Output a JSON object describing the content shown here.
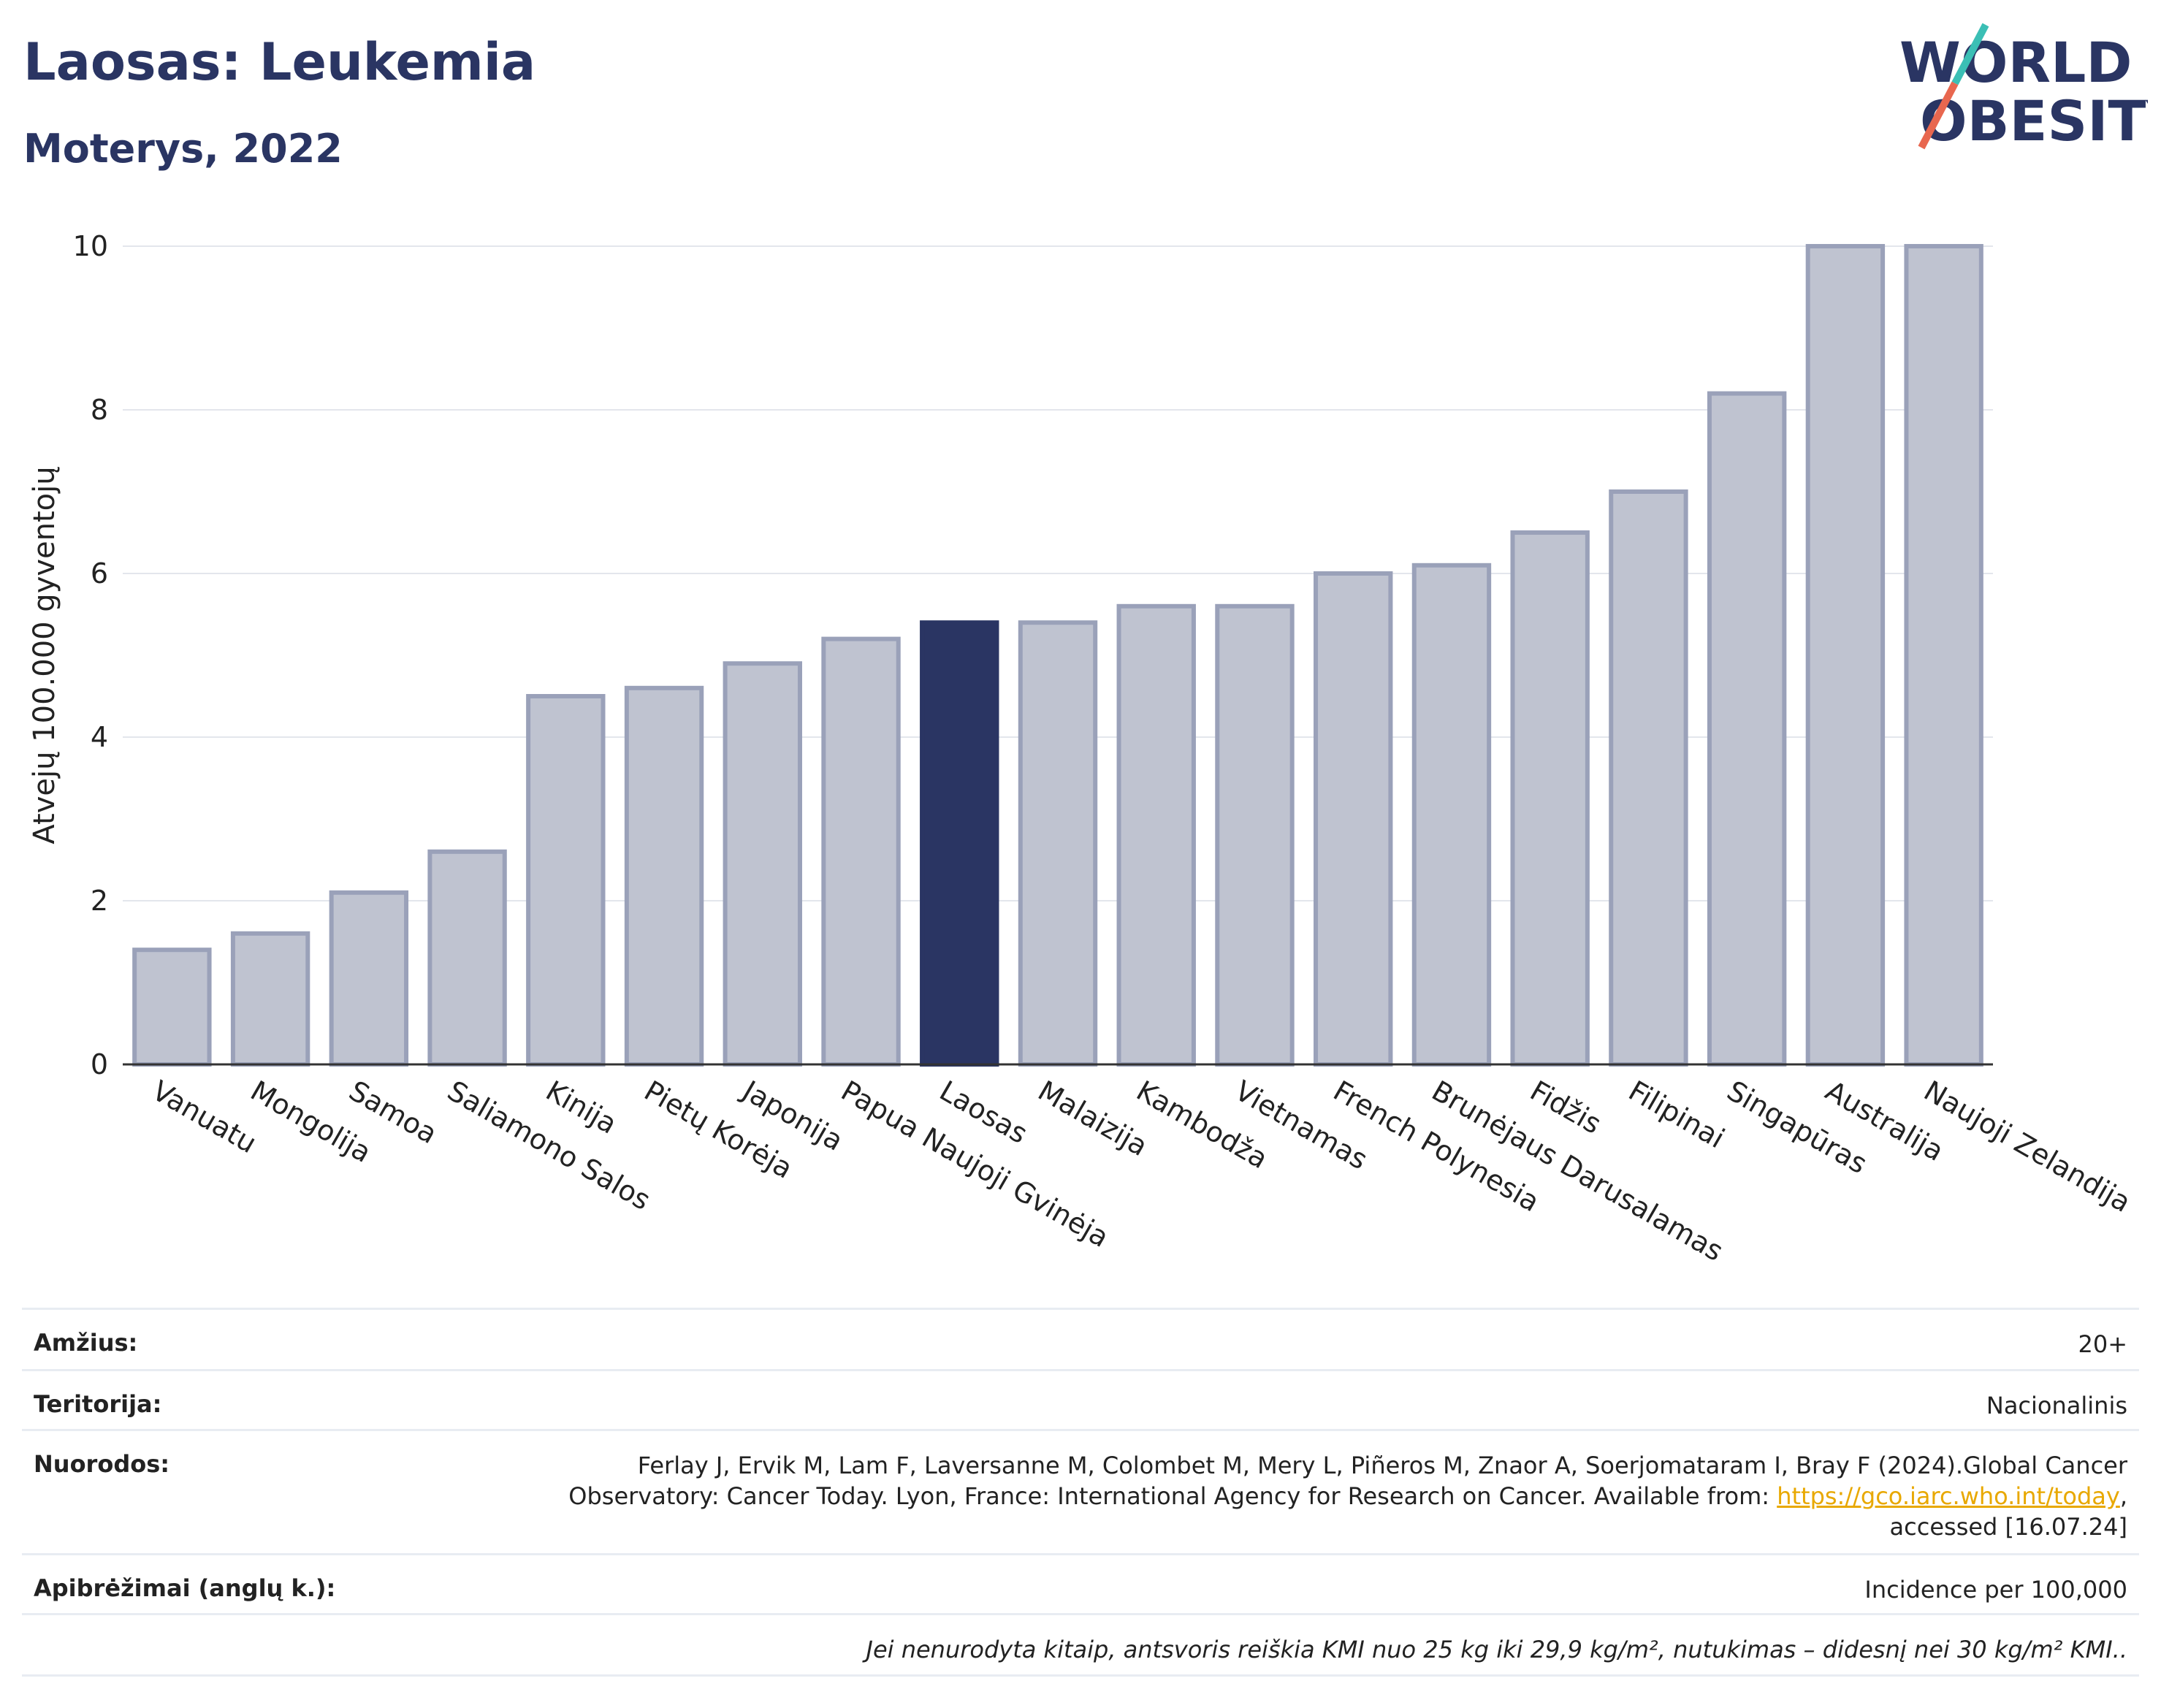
{
  "header": {
    "title": "Laosas: Leukemia",
    "subtitle": "Moterys, 2022"
  },
  "logo": {
    "line1": "WORLD",
    "line2": "OBESITY",
    "accent_colors": [
      "#3bbfb5",
      "#e8674f"
    ]
  },
  "colors": {
    "bar": "#bfc3d0",
    "bar_edge": "#9aa1b9",
    "highlight": "#2a3563",
    "grid": "#e3e6ec",
    "axis": "#333333"
  },
  "chart_data": {
    "type": "bar",
    "ylabel": "Atvejų 100.000 gyventojų",
    "ylim": [
      0,
      10
    ],
    "yticks": [
      0,
      2,
      4,
      6,
      8,
      10
    ],
    "grid": true,
    "highlight_category": "Laosas",
    "categories": [
      "Vanuatu",
      "Mongolija",
      "Samoa",
      "Saliamono Salos",
      "Kinija",
      "Pietų Korėja",
      "Japonija",
      "Papua Naujoji Gvinėja",
      "Laosas",
      "Malaizija",
      "Kambodža",
      "Vietnamas",
      "French Polynesia",
      "Brunėjaus Darusalamas",
      "Fidžis",
      "Filipinai",
      "Singapūras",
      "Australija",
      "Naujoji Zelandija"
    ],
    "values": [
      1.4,
      1.6,
      2.1,
      2.6,
      4.5,
      4.6,
      4.9,
      5.2,
      5.4,
      5.4,
      5.6,
      5.6,
      6.0,
      6.1,
      6.5,
      7.0,
      8.2,
      10.0,
      10.0
    ]
  },
  "info": {
    "age_label": "Amžius:",
    "age_value": "20+",
    "territory_label": "Teritorija:",
    "territory_value": "Nacionalinis",
    "refs_label": "Nuorodos:",
    "refs_line1": "Ferlay J, Ervik M, Lam F, Laversanne M, Colombet M, Mery L, Piñeros M, Znaor A, Soerjomataram I, Bray F (2024).Global Cancer",
    "refs_line2_pre": "Observatory: Cancer Today. Lyon, France: International Agency for Research on Cancer. Available from: ",
    "refs_link": "https://gco.iarc.who.int/today",
    "refs_line2_post": ",",
    "refs_line3": "accessed [16.07.24]",
    "defs_label": "Apibrėžimai (anglų k.):",
    "defs_value": "Incidence per 100,000",
    "note": "Jei nenurodyta kitaip, antsvoris reiškia KMI nuo 25 kg iki 29,9 kg/m², nutukimas – didesnį nei 30 kg/m² KMI.."
  }
}
